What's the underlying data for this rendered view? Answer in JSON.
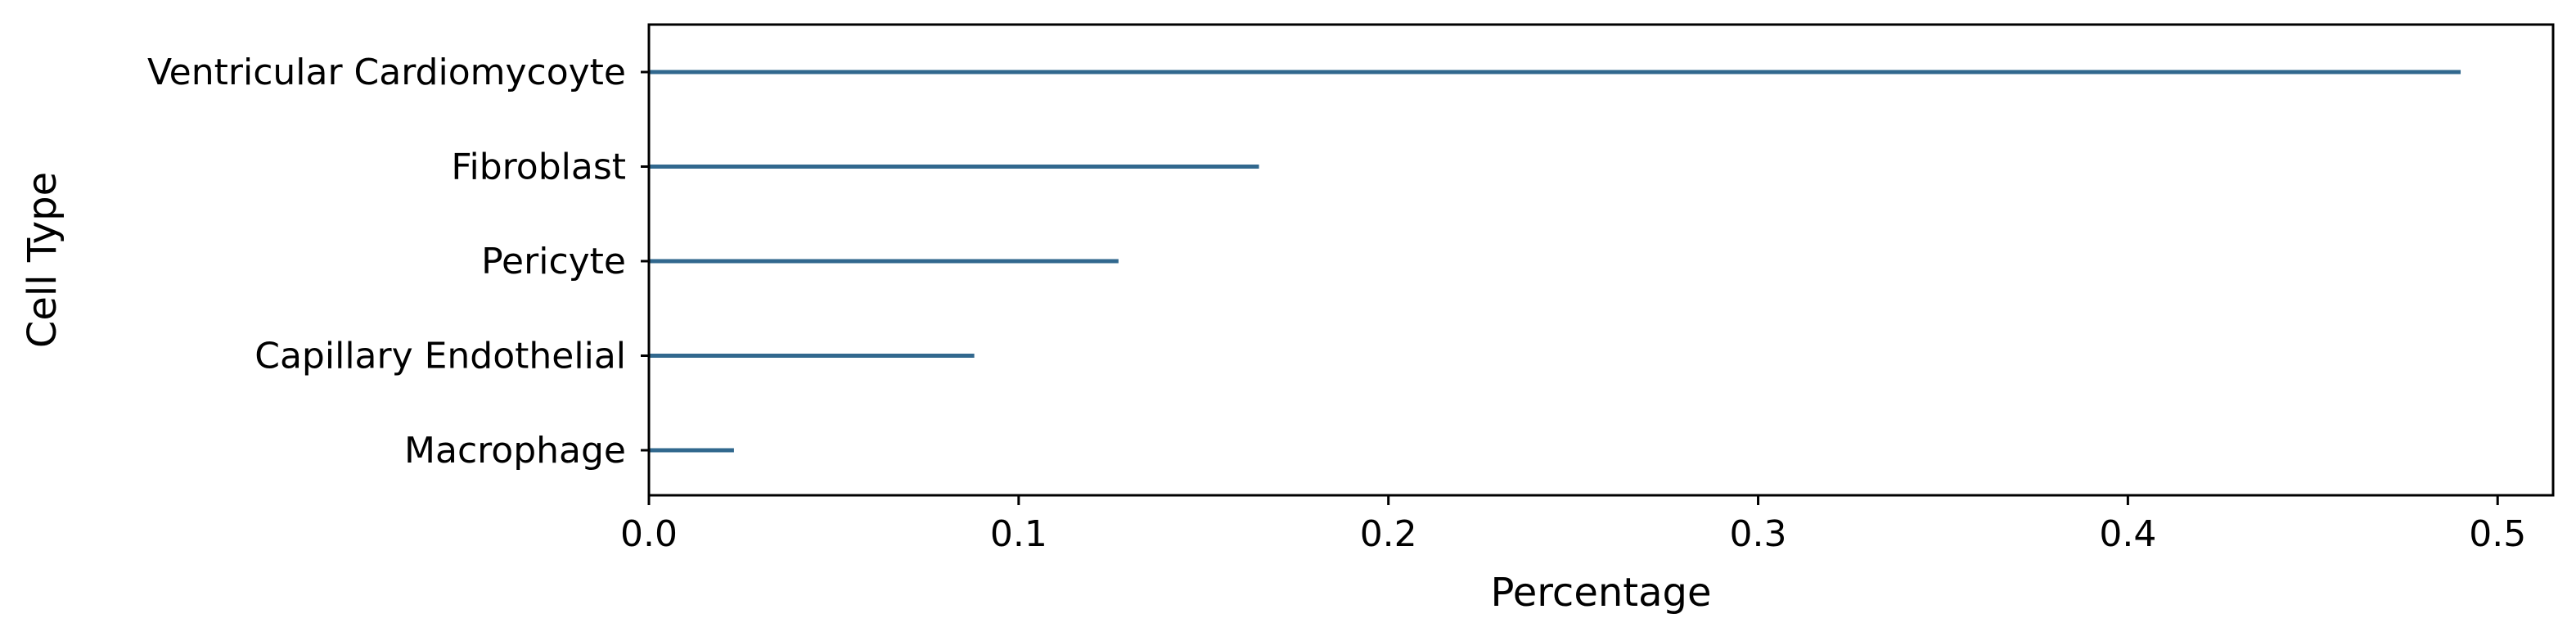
{
  "chart_data": {
    "type": "bar",
    "orientation": "horizontal",
    "categories": [
      "Ventricular Cardiomycoyte",
      "Fibroblast",
      "Pericyte",
      "Capillary Endothelial",
      "Macrophage"
    ],
    "values": [
      0.49,
      0.165,
      0.127,
      0.088,
      0.023
    ],
    "xlabel": "Percentage",
    "ylabel": "Cell Type",
    "xlim": [
      0,
      0.515
    ],
    "xticks": [
      "0.0",
      "0.1",
      "0.2",
      "0.3",
      "0.4",
      "0.5"
    ],
    "grid": false,
    "bar_color": "#31688e"
  }
}
